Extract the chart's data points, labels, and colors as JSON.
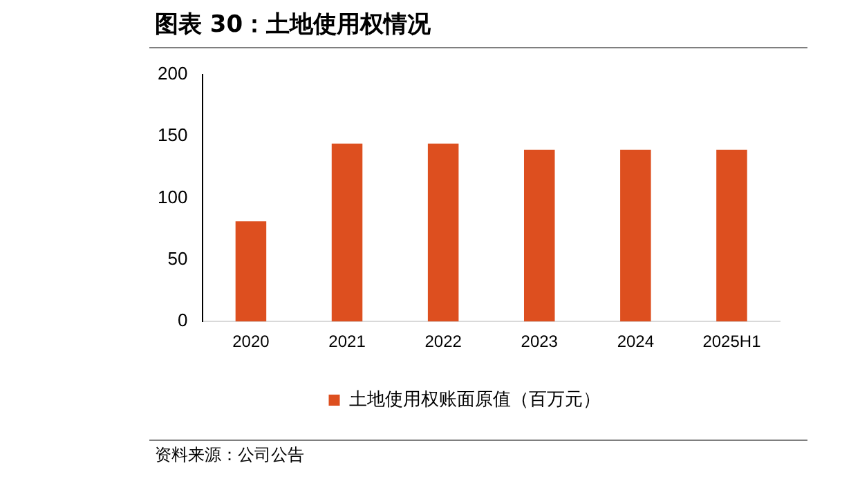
{
  "chart_data": {
    "type": "bar",
    "title": "图表 30：土地使用权情况",
    "categories": [
      "2020",
      "2021",
      "2022",
      "2023",
      "2024",
      "2025H1"
    ],
    "series": [
      {
        "name": "土地使用权账面原值（百万元）",
        "color": "#dd4f1f",
        "values": [
          81,
          144,
          144,
          139,
          139,
          139
        ]
      }
    ],
    "ylim": [
      0,
      200
    ],
    "yticks": [
      0,
      50,
      100,
      150,
      200
    ],
    "grid": false,
    "legend": "bottom",
    "annotations": [
      "资料来源：公司公告"
    ]
  }
}
